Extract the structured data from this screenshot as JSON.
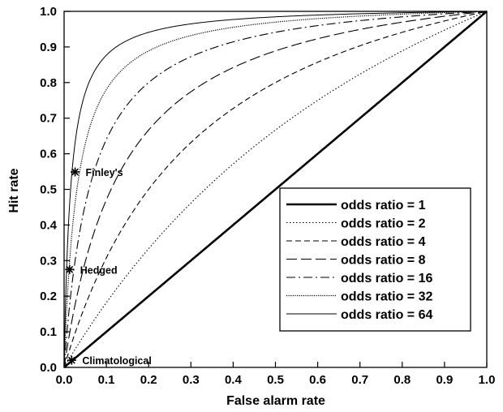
{
  "chart_data": {
    "type": "line",
    "xlabel": "False alarm rate",
    "ylabel": "Hit rate",
    "xlim": [
      0.0,
      1.0
    ],
    "ylim": [
      0.0,
      1.0
    ],
    "x_ticks": [
      "0.0",
      "0.1",
      "0.2",
      "0.3",
      "0.4",
      "0.5",
      "0.6",
      "0.7",
      "0.8",
      "0.9",
      "1.0"
    ],
    "y_ticks": [
      "0.0",
      "0.1",
      "0.2",
      "0.3",
      "0.4",
      "0.5",
      "0.6",
      "0.7",
      "0.8",
      "0.9",
      "1.0"
    ],
    "grid": false,
    "legend_position": "lower-right",
    "series": [
      {
        "name": "odds ratio = 1",
        "odds_ratio": 1,
        "style": "solid-thick"
      },
      {
        "name": "odds ratio = 2",
        "odds_ratio": 2,
        "style": "dotted"
      },
      {
        "name": "odds ratio = 4",
        "odds_ratio": 4,
        "style": "short-dash"
      },
      {
        "name": "odds ratio = 8",
        "odds_ratio": 8,
        "style": "long-dash"
      },
      {
        "name": "odds ratio = 16",
        "odds_ratio": 16,
        "style": "dash-dot"
      },
      {
        "name": "odds ratio = 32",
        "odds_ratio": 32,
        "style": "dense-dot"
      },
      {
        "name": "odds ratio = 64",
        "odds_ratio": 64,
        "style": "solid-thin"
      }
    ],
    "points": [
      {
        "label": "Finley's",
        "x": 0.026,
        "y": 0.549
      },
      {
        "label": "Hedged",
        "x": 0.013,
        "y": 0.275
      },
      {
        "label": "Climatological",
        "x": 0.018,
        "y": 0.02
      }
    ]
  }
}
